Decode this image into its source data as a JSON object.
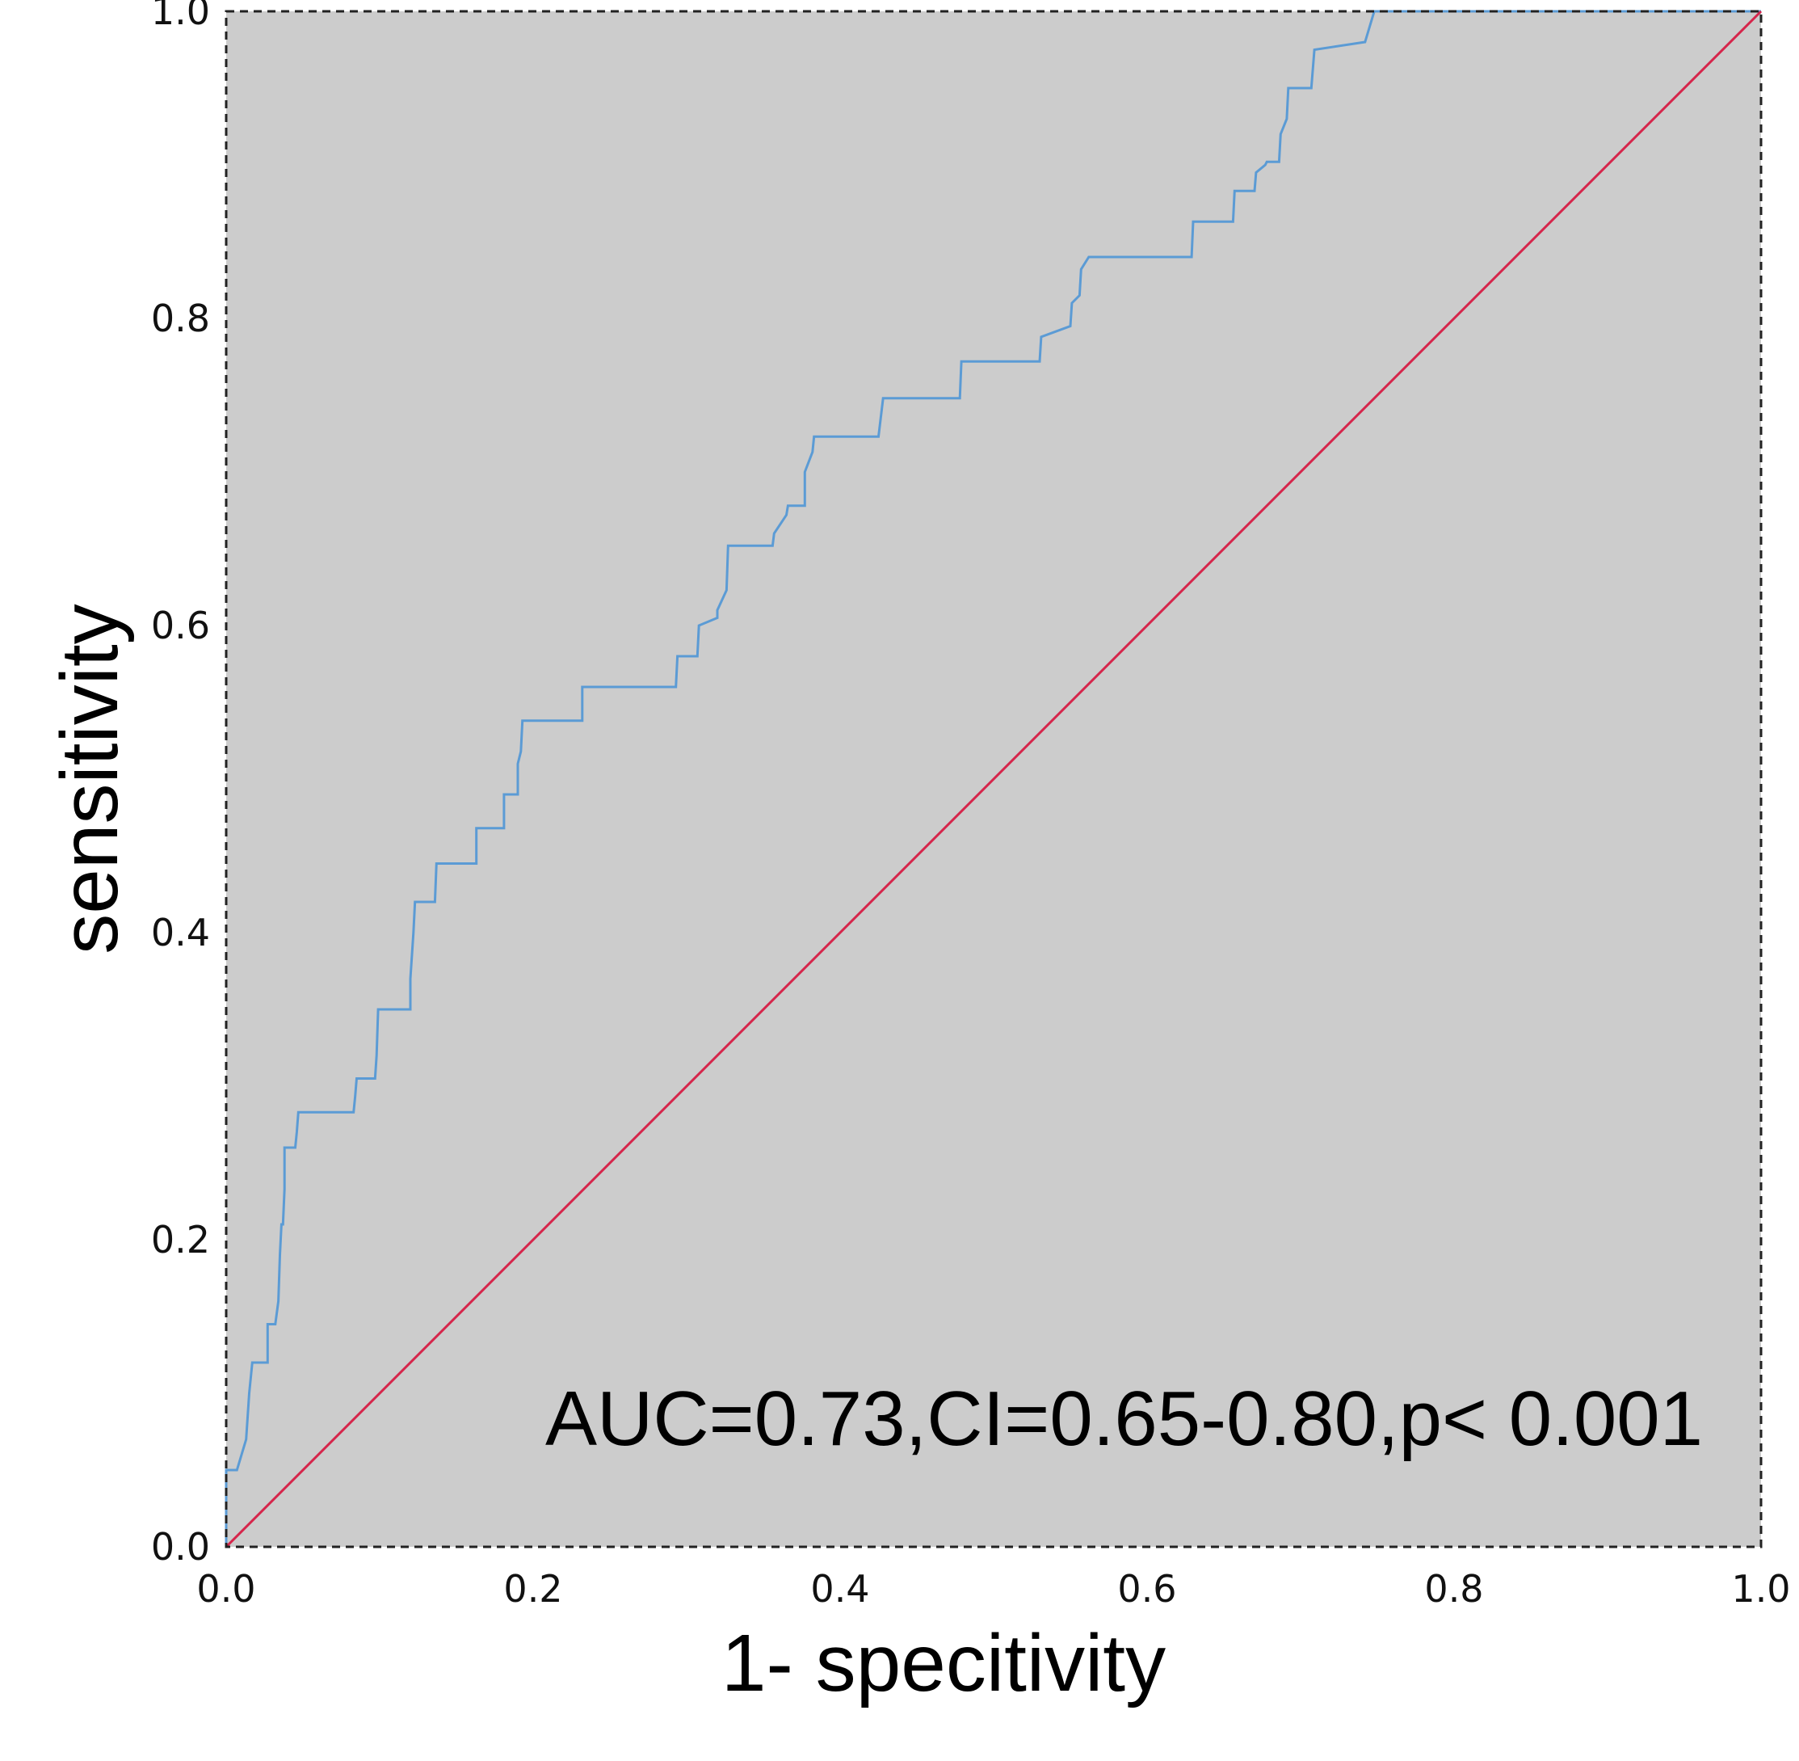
{
  "chart_data": {
    "type": "line",
    "title": "",
    "xlabel": "1- specitivity",
    "ylabel": "sensitivity",
    "xlim": [
      0.0,
      1.0
    ],
    "ylim": [
      0.0,
      1.0
    ],
    "x_ticks": [
      "0.0",
      "0.2",
      "0.4",
      "0.6",
      "0.8",
      "1.0"
    ],
    "y_ticks": [
      "0.0",
      "0.2",
      "0.4",
      "0.6",
      "0.8",
      "1.0"
    ],
    "grid": false,
    "plot_background": "#cccccc",
    "annotation": "AUC=0.73,CI=0.65-0.80,p< 0.001",
    "series": [
      {
        "color": "#5b9bd5",
        "x": [
          0.0,
          0.0,
          0.007,
          0.007,
          0.013,
          0.015,
          0.017,
          0.02,
          0.027,
          0.027,
          0.032,
          0.034,
          0.035,
          0.036,
          0.037,
          0.038,
          0.038,
          0.045,
          0.046,
          0.047,
          0.083,
          0.084,
          0.085,
          0.097,
          0.098,
          0.099,
          0.12,
          0.12,
          0.122,
          0.123,
          0.136,
          0.137,
          0.163,
          0.163,
          0.181,
          0.181,
          0.19,
          0.19,
          0.192,
          0.193,
          0.232,
          0.232,
          0.293,
          0.294,
          0.307,
          0.308,
          0.32,
          0.32,
          0.326,
          0.327,
          0.356,
          0.357,
          0.365,
          0.366,
          0.377,
          0.377,
          0.382,
          0.383,
          0.425,
          0.428,
          0.478,
          0.479,
          0.53,
          0.531,
          0.55,
          0.551,
          0.556,
          0.557,
          0.562,
          0.563,
          0.629,
          0.63,
          0.656,
          0.657,
          0.67,
          0.671,
          0.677,
          0.678,
          0.686,
          0.687,
          0.691,
          0.692,
          0.694,
          0.695,
          0.707,
          0.709,
          0.742,
          0.745,
          0.748,
          0.749,
          1.0
        ],
        "y": [
          0.0,
          0.05,
          0.05,
          0.05,
          0.07,
          0.1,
          0.12,
          0.12,
          0.12,
          0.145,
          0.145,
          0.16,
          0.19,
          0.21,
          0.21,
          0.233,
          0.26,
          0.26,
          0.27,
          0.283,
          0.283,
          0.293,
          0.305,
          0.305,
          0.32,
          0.35,
          0.35,
          0.37,
          0.4,
          0.42,
          0.42,
          0.445,
          0.445,
          0.468,
          0.468,
          0.49,
          0.49,
          0.51,
          0.518,
          0.538,
          0.538,
          0.56,
          0.56,
          0.58,
          0.58,
          0.6,
          0.605,
          0.61,
          0.623,
          0.652,
          0.652,
          0.66,
          0.672,
          0.678,
          0.678,
          0.7,
          0.713,
          0.723,
          0.723,
          0.748,
          0.748,
          0.772,
          0.772,
          0.788,
          0.795,
          0.81,
          0.815,
          0.832,
          0.84,
          0.84,
          0.84,
          0.863,
          0.863,
          0.883,
          0.883,
          0.895,
          0.9,
          0.902,
          0.902,
          0.92,
          0.93,
          0.95,
          0.95,
          0.95,
          0.95,
          0.975,
          0.98,
          0.99,
          1.0,
          1.0,
          1.0
        ]
      },
      {
        "color": "#d6254b",
        "x": [
          0.0,
          1.0
        ],
        "y": [
          0.0,
          1.0
        ]
      }
    ]
  }
}
